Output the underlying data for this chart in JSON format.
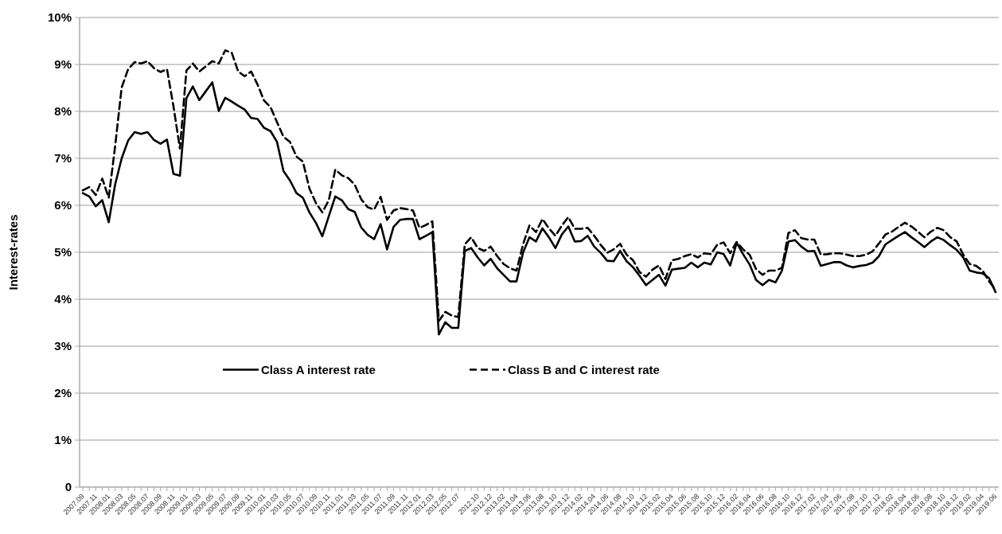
{
  "chart_data": {
    "type": "line",
    "ylabel": "Interest-rates",
    "categories": [
      "2007.09",
      null,
      "2007.11",
      null,
      "2008.01",
      null,
      "2008.03",
      null,
      "2008.05",
      null,
      "2008.07",
      null,
      "2008.09",
      null,
      "2008.11",
      null,
      "2009.01",
      null,
      "2009.03",
      null,
      "2009.05",
      null,
      "2009.07",
      null,
      "2009.09",
      null,
      "2009.11",
      null,
      "2010.01",
      null,
      "2010.03",
      null,
      "2010.05",
      null,
      "2010.07",
      null,
      "2010.09",
      null,
      "2010.11",
      null,
      "2011.01",
      null,
      "2011.03",
      null,
      "2011.05",
      null,
      "2011.07",
      null,
      "2011.09",
      null,
      "2011.11",
      null,
      "2012.01",
      null,
      "2012.03",
      null,
      "2012.05",
      null,
      "2012.07",
      null,
      null,
      "2012.10",
      null,
      "2012.12",
      null,
      "2013.02",
      null,
      "2013.04",
      null,
      "2013.06",
      null,
      "2013.08",
      null,
      "2013.10",
      null,
      "2013.12",
      null,
      "2014.02",
      null,
      "2014.04",
      null,
      "2014.06",
      null,
      "2014.08",
      null,
      "2014.10",
      null,
      "2014.12",
      null,
      "2015.02",
      null,
      "2015.04",
      null,
      "2015.06",
      null,
      "2015.08",
      null,
      "2015.10",
      null,
      "2015.12",
      null,
      "2016.02",
      null,
      "2016.04",
      null,
      "2016.06",
      null,
      "2016.08",
      null,
      "2016.10",
      null,
      "2016.12",
      null,
      "2017.02",
      null,
      "2017.04",
      null,
      "2017.06",
      null,
      "2017.08",
      null,
      "2017.10",
      null,
      "2017.12",
      null,
      "2018.02",
      null,
      "2018.04",
      null,
      "2018.06",
      null,
      "2018.08",
      null,
      "2018.10",
      null,
      "2018.12",
      null,
      "2019.02",
      null,
      "2019.04",
      null,
      "2019.06"
    ],
    "series": [
      {
        "name": "Class A interest rate",
        "color": "#000000",
        "line_style": "solid",
        "values": [
          6.26,
          6.19,
          5.98,
          6.11,
          5.64,
          6.45,
          7.0,
          7.38,
          7.56,
          7.52,
          7.56,
          7.39,
          7.31,
          7.4,
          6.67,
          6.63,
          8.28,
          8.53,
          8.24,
          8.43,
          8.62,
          8.01,
          8.29,
          8.21,
          8.12,
          8.04,
          7.86,
          7.84,
          7.65,
          7.58,
          7.35,
          6.73,
          6.53,
          6.26,
          6.16,
          5.85,
          5.63,
          5.34,
          5.77,
          6.19,
          6.11,
          5.92,
          5.86,
          5.53,
          5.37,
          5.28,
          5.6,
          5.06,
          5.54,
          5.69,
          5.71,
          5.71,
          5.28,
          5.35,
          5.43,
          3.25,
          3.51,
          3.39,
          3.39,
          5.03,
          5.09,
          4.89,
          4.72,
          4.86,
          4.66,
          4.52,
          4.38,
          4.38,
          4.99,
          5.32,
          5.23,
          5.51,
          5.32,
          5.09,
          5.38,
          5.55,
          5.23,
          5.24,
          5.35,
          5.12,
          4.99,
          4.82,
          4.81,
          5.03,
          4.81,
          4.68,
          4.5,
          4.3,
          4.41,
          4.52,
          4.29,
          4.63,
          4.65,
          4.67,
          4.78,
          4.68,
          4.78,
          4.74,
          5.0,
          4.96,
          4.72,
          5.2,
          4.96,
          4.74,
          4.41,
          4.3,
          4.41,
          4.36,
          4.61,
          5.23,
          5.26,
          5.12,
          5.02,
          5.03,
          4.71,
          4.75,
          4.79,
          4.79,
          4.72,
          4.68,
          4.71,
          4.73,
          4.78,
          4.92,
          5.17,
          5.26,
          5.35,
          5.43,
          5.32,
          5.22,
          5.11,
          5.23,
          5.32,
          5.26,
          5.15,
          5.05,
          4.89,
          4.61,
          4.57,
          4.55,
          4.45,
          4.15
        ]
      },
      {
        "name": "Class B and C interest rate",
        "color": "#000000",
        "line_style": "dashed",
        "values": [
          6.32,
          6.39,
          6.22,
          6.57,
          6.16,
          7.27,
          8.51,
          8.9,
          9.05,
          9.02,
          9.07,
          8.92,
          8.84,
          8.9,
          8.11,
          7.21,
          8.87,
          9.02,
          8.85,
          8.96,
          9.07,
          9.02,
          9.3,
          9.25,
          8.85,
          8.75,
          8.85,
          8.57,
          8.23,
          8.09,
          7.77,
          7.46,
          7.35,
          7.04,
          6.93,
          6.36,
          6.05,
          5.85,
          6.11,
          6.76,
          6.64,
          6.58,
          6.44,
          6.13,
          5.96,
          5.91,
          6.18,
          5.69,
          5.89,
          5.94,
          5.92,
          5.89,
          5.52,
          5.58,
          5.66,
          3.54,
          3.73,
          3.65,
          3.62,
          5.17,
          5.32,
          5.09,
          5.03,
          5.12,
          4.92,
          4.75,
          4.66,
          4.61,
          5.17,
          5.57,
          5.43,
          5.71,
          5.51,
          5.35,
          5.57,
          5.75,
          5.5,
          5.5,
          5.52,
          5.35,
          5.16,
          4.99,
          5.06,
          5.18,
          4.95,
          4.83,
          4.58,
          4.48,
          4.63,
          4.72,
          4.43,
          4.83,
          4.86,
          4.92,
          4.96,
          4.89,
          4.98,
          4.96,
          5.16,
          5.21,
          4.98,
          5.22,
          5.06,
          4.95,
          4.64,
          4.52,
          4.61,
          4.61,
          4.67,
          5.41,
          5.47,
          5.3,
          5.27,
          5.27,
          4.95,
          4.96,
          4.98,
          4.98,
          4.95,
          4.92,
          4.92,
          4.95,
          5.02,
          5.19,
          5.38,
          5.44,
          5.54,
          5.63,
          5.55,
          5.44,
          5.32,
          5.44,
          5.52,
          5.47,
          5.32,
          5.23,
          4.95,
          4.75,
          4.71,
          4.61,
          4.38,
          4.21
        ]
      }
    ],
    "ylim": [
      0,
      10
    ],
    "yticks": [
      0,
      {
        "value": 1,
        "label": "1%"
      },
      {
        "value": 2,
        "label": "2%"
      },
      {
        "value": 3,
        "label": "3%"
      },
      {
        "value": 4,
        "label": "4%"
      },
      {
        "value": 5,
        "label": "5%"
      },
      {
        "value": 6,
        "label": "6%"
      },
      {
        "value": 7,
        "label": "7%"
      },
      {
        "value": 8,
        "label": "8%"
      },
      {
        "value": 9,
        "label": "9%"
      },
      {
        "value": 10,
        "label": "10%"
      }
    ],
    "grid": "y",
    "legend": "bottom left",
    "marker": "none"
  }
}
